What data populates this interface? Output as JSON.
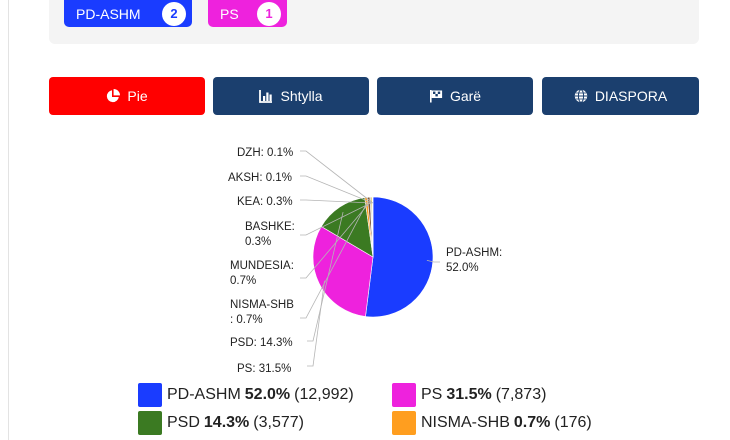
{
  "seats": [
    {
      "party": "PD-ASHM",
      "count": "2",
      "color": "#1a3cff"
    },
    {
      "party": "PS",
      "count": "1",
      "color": "#ee22dd"
    }
  ],
  "tabs": [
    {
      "label": "Pie",
      "icon": "pie-chart-icon",
      "active": true
    },
    {
      "label": "Shtylla",
      "icon": "bar-chart-icon",
      "active": false
    },
    {
      "label": "Garë",
      "icon": "race-flag-icon",
      "active": false
    },
    {
      "label": "DIASPORA",
      "icon": "globe-icon",
      "active": false
    }
  ],
  "chart_data": {
    "type": "pie",
    "slices": [
      {
        "name": "PD-ASHM",
        "percent": 52.0,
        "votes": 12992,
        "color": "#1a3cff"
      },
      {
        "name": "PS",
        "percent": 31.5,
        "votes": 7873,
        "color": "#ee22dd"
      },
      {
        "name": "PSD",
        "percent": 14.3,
        "votes": 3577,
        "color": "#3b7a22"
      },
      {
        "name": "NISMA-SHB",
        "percent": 0.7,
        "votes": 176,
        "color": "#ff9e1f"
      },
      {
        "name": "MUNDESIA",
        "percent": 0.7,
        "color": "#7a5230"
      },
      {
        "name": "BASHKE",
        "percent": 0.3,
        "color": "#9e9e9e"
      },
      {
        "name": "KEA",
        "percent": 0.3,
        "color": "#c8a000"
      },
      {
        "name": "AKSH",
        "percent": 0.1,
        "color": "#8888aa"
      },
      {
        "name": "DZH",
        "percent": 0.1,
        "color": "#5e8bb0"
      }
    ],
    "labels": {
      "pd_ashm": [
        "PD-ASHM:",
        "52.0%"
      ],
      "ps": [
        "PS: 31.5%"
      ],
      "psd": [
        "PSD: 14.3%"
      ],
      "nisma": [
        "NISMA-SHB",
        ": 0.7%"
      ],
      "mundesia": [
        "MUNDESIA:",
        "0.7%"
      ],
      "bashke": [
        "BASHKE:",
        "0.3%"
      ],
      "kea": [
        "KEA: 0.3%"
      ],
      "aksh": [
        "AKSH: 0.1%"
      ],
      "dzh": [
        "DZH: 0.1%"
      ]
    },
    "legend": [
      {
        "name": "PD-ASHM",
        "pct": "52.0%",
        "votes": "(12,992)",
        "color": "#1a3cff"
      },
      {
        "name": "PS",
        "pct": "31.5%",
        "votes": "(7,873)",
        "color": "#ee22dd"
      },
      {
        "name": "PSD",
        "pct": "14.3%",
        "votes": "(3,577)",
        "color": "#3b7a22"
      },
      {
        "name": "NISMA-SHB",
        "pct": "0.7%",
        "votes": "(176)",
        "color": "#ff9e1f"
      }
    ]
  }
}
